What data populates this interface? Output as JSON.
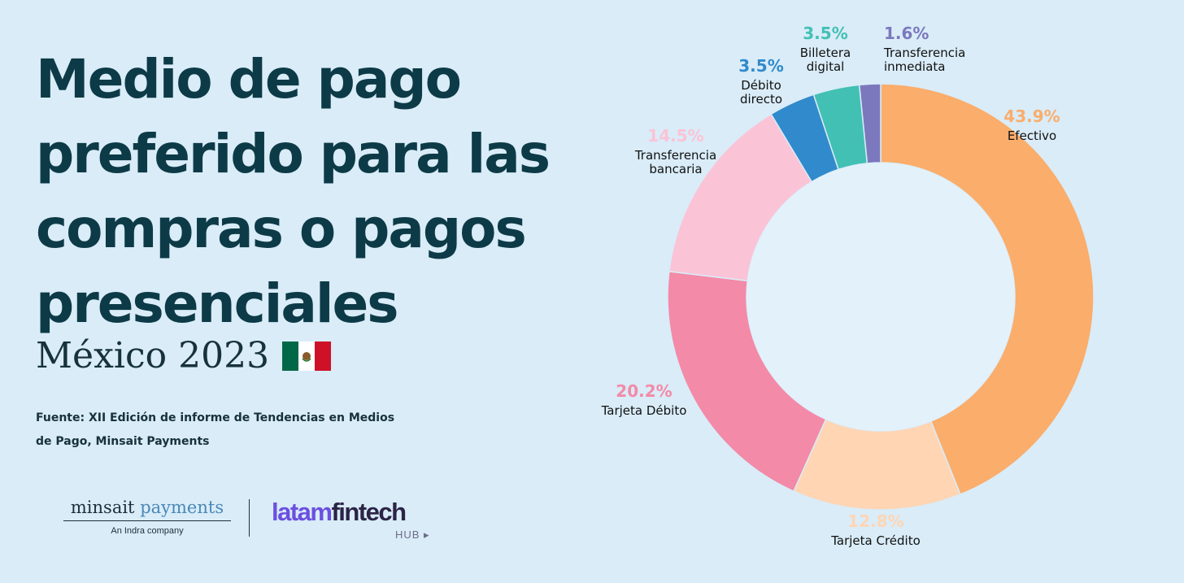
{
  "title_lines": [
    "Medio de pago",
    "preferido para las",
    "compras o pagos",
    "presenciales"
  ],
  "subtitle": "México 2023",
  "flag_colors": [
    "#006847",
    "#ffffff",
    "#ce1126"
  ],
  "source_line1": "Fuente: XII Edición de informe de Tendencias en Medios",
  "source_line2": "de Pago, Minsait Payments",
  "logos": {
    "minsait_a": "minsait",
    "minsait_b": "payments",
    "minsait_tag": "An Indra company",
    "latam_a": "latam",
    "latam_b": "fintech",
    "latam_hub": "HUB ▸"
  },
  "chart_data": {
    "type": "pie",
    "donut": true,
    "start": "top, clockwise",
    "slices": [
      {
        "label": [
          "Efectivo"
        ],
        "value": 43.9,
        "display": "43.9%",
        "color": "#fbad6b"
      },
      {
        "label": [
          "Tarjeta Crédito"
        ],
        "value": 12.8,
        "display": "12.8%",
        "color": "#ffd5b4"
      },
      {
        "label": [
          "Tarjeta Débito"
        ],
        "value": 20.2,
        "display": "20.2%",
        "color": "#f38aa7"
      },
      {
        "label": [
          "Transferencia",
          "bancaria"
        ],
        "value": 14.5,
        "display": "14.5%",
        "color": "#fbc3d6"
      },
      {
        "label": [
          "Débito",
          "directo"
        ],
        "value": 3.5,
        "display": "3.5%",
        "color": "#318acb"
      },
      {
        "label": [
          "Billetera",
          "digital"
        ],
        "value": 3.5,
        "display": "3.5%",
        "color": "#42c0b4"
      },
      {
        "label": [
          "Transferencia",
          "inmediata"
        ],
        "value": 1.6,
        "display": "1.6%",
        "color": "#7c78bd"
      }
    ]
  }
}
